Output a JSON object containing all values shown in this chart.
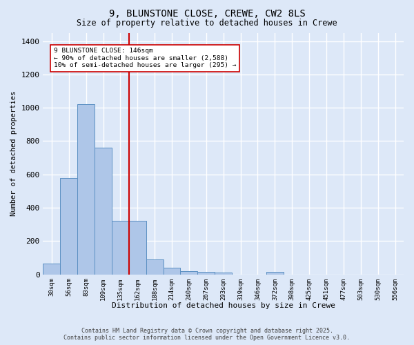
{
  "title": "9, BLUNSTONE CLOSE, CREWE, CW2 8LS",
  "subtitle": "Size of property relative to detached houses in Crewe",
  "xlabel": "Distribution of detached houses by size in Crewe",
  "ylabel": "Number of detached properties",
  "categories": [
    "30sqm",
    "56sqm",
    "83sqm",
    "109sqm",
    "135sqm",
    "162sqm",
    "188sqm",
    "214sqm",
    "240sqm",
    "267sqm",
    "293sqm",
    "319sqm",
    "346sqm",
    "372sqm",
    "398sqm",
    "425sqm",
    "451sqm",
    "477sqm",
    "503sqm",
    "530sqm",
    "556sqm"
  ],
  "values": [
    65,
    580,
    1020,
    760,
    320,
    320,
    90,
    40,
    20,
    15,
    10,
    0,
    0,
    15,
    0,
    0,
    0,
    0,
    0,
    0,
    0
  ],
  "bar_color": "#aec6e8",
  "bar_edge_color": "#5a8fc2",
  "vline_x": 4.5,
  "vline_color": "#cc0000",
  "annotation_text": "9 BLUNSTONE CLOSE: 146sqm\n← 90% of detached houses are smaller (2,588)\n10% of semi-detached houses are larger (295) →",
  "annotation_box_color": "#ffffff",
  "annotation_box_edge": "#cc0000",
  "ylim": [
    0,
    1450
  ],
  "yticks": [
    0,
    200,
    400,
    600,
    800,
    1000,
    1200,
    1400
  ],
  "background_color": "#dde8f8",
  "grid_color": "#ffffff",
  "footer_line1": "Contains HM Land Registry data © Crown copyright and database right 2025.",
  "footer_line2": "Contains public sector information licensed under the Open Government Licence v3.0."
}
